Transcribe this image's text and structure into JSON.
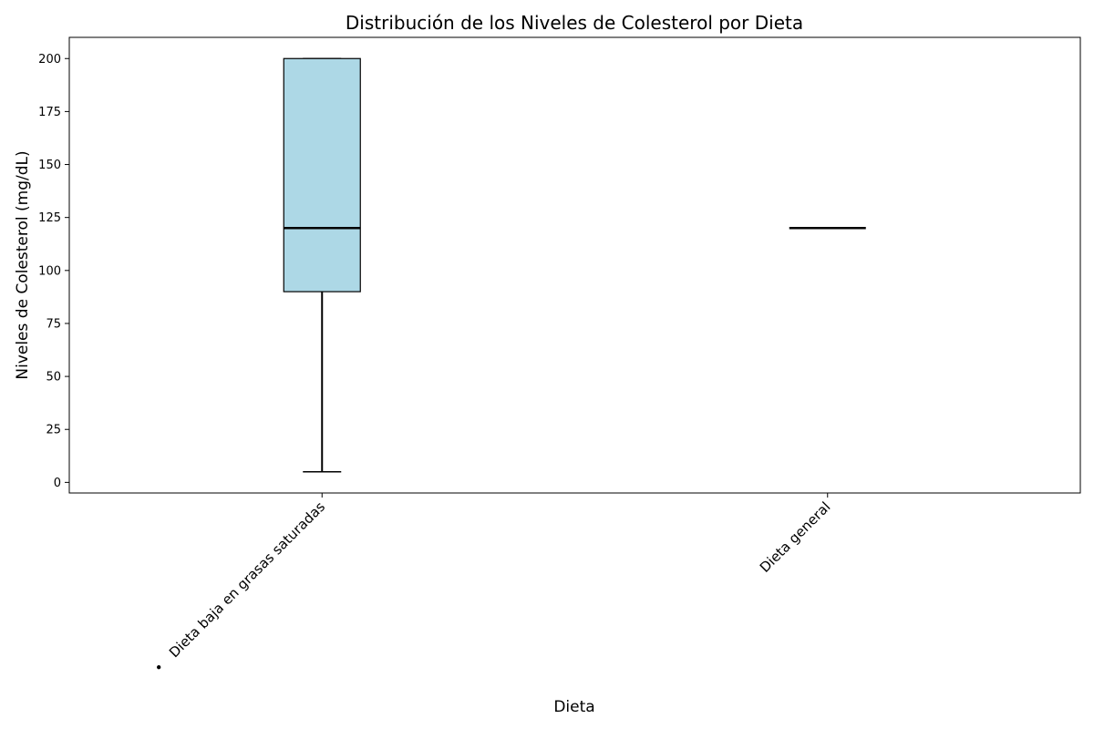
{
  "chart_data": {
    "type": "box",
    "title": "Distribución de los Niveles de Colesterol por Dieta",
    "xlabel": "Dieta",
    "ylabel": "Niveles de Colesterol (mg/dL)",
    "ylim": [
      -5,
      210
    ],
    "yticks": [
      0,
      25,
      50,
      75,
      100,
      125,
      150,
      175,
      200
    ],
    "grid": false,
    "box_color": "#add8e6",
    "categories": [
      "• Dieta baja en grasas saturadas",
      "Dieta general"
    ],
    "boxes": [
      {
        "category": "• Dieta baja en grasas saturadas",
        "whisker_low": 5,
        "q1": 90,
        "median": 120,
        "q3": 200,
        "whisker_high": 200
      },
      {
        "category": "Dieta general",
        "whisker_low": 120,
        "q1": 120,
        "median": 120,
        "q3": 120,
        "whisker_high": 120
      }
    ]
  }
}
